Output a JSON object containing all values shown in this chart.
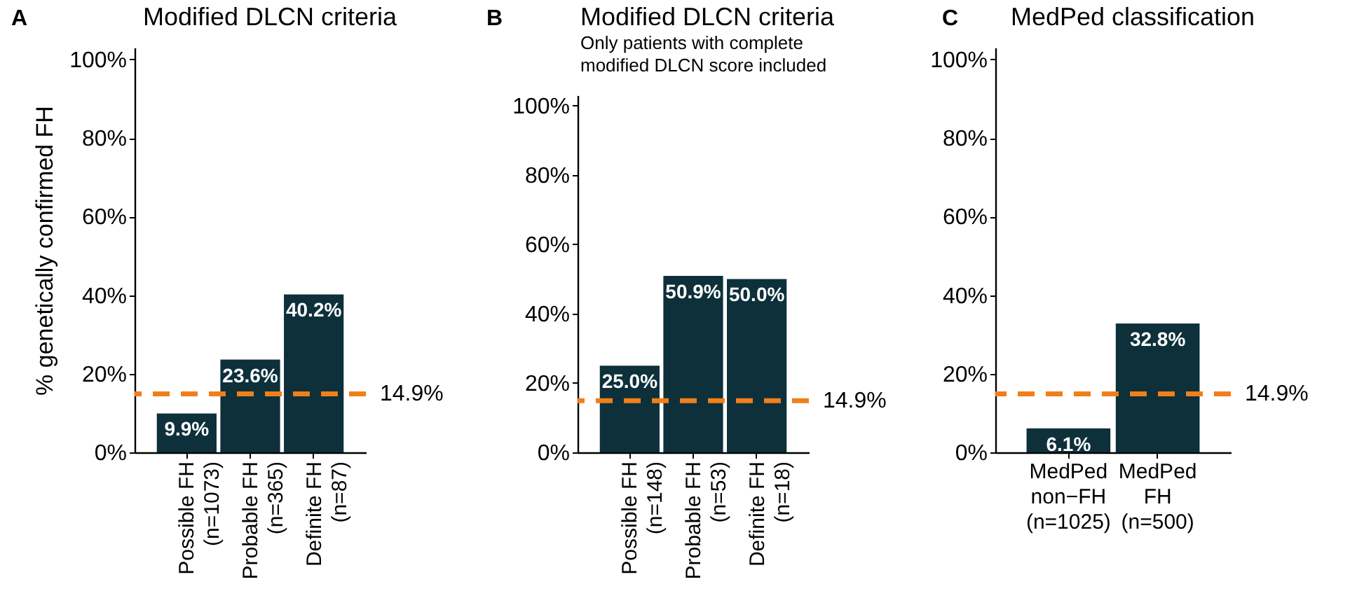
{
  "chart_data": [
    {
      "type": "bar",
      "title": "Modified DLCN criteria",
      "ylabel": "% genetically confirmed FH",
      "annotations": [
        "A"
      ],
      "categories": [
        "Possible FH\n(n=1073)",
        "Probable FH\n(n=365)",
        "Definite FH\n(n=87)"
      ],
      "series": [
        {
          "color": "#0d303b",
          "values": [
            9.9,
            23.6,
            40.2
          ],
          "value_labels": [
            "9.9%",
            "23.6%",
            "40.2%"
          ]
        }
      ],
      "ylim": [
        0,
        103
      ],
      "yticks": [
        {
          "value": 0,
          "label": "0%"
        },
        {
          "value": 20,
          "label": "20%"
        },
        {
          "value": 40,
          "label": "40%"
        },
        {
          "value": 60,
          "label": "60%"
        },
        {
          "value": 80,
          "label": "80%"
        },
        {
          "value": 100,
          "label": "100%"
        }
      ],
      "ref_lines": [
        {
          "axis": "y",
          "value": 14.9,
          "label": "14.9%",
          "color": "#f07f1a",
          "line_style": "dashed"
        }
      ],
      "grid": false
    },
    {
      "type": "bar",
      "title": "Modified DLCN criteria",
      "subtitle": "Only patients with complete\nmodified DLCN score included",
      "annotations": [
        "B"
      ],
      "categories": [
        "Possible FH\n(n=148)",
        "Probable FH\n(n=53)",
        "Definite FH\n(n=18)"
      ],
      "series": [
        {
          "color": "#0d303b",
          "values": [
            25.0,
            50.9,
            50.0
          ],
          "value_labels": [
            "25.0%",
            "50.9%",
            "50.0%"
          ]
        }
      ],
      "ylim": [
        0,
        103
      ],
      "yticks": [
        {
          "value": 0,
          "label": "0%"
        },
        {
          "value": 20,
          "label": "20%"
        },
        {
          "value": 40,
          "label": "40%"
        },
        {
          "value": 60,
          "label": "60%"
        },
        {
          "value": 80,
          "label": "80%"
        },
        {
          "value": 100,
          "label": "100%"
        }
      ],
      "ref_lines": [
        {
          "axis": "y",
          "value": 14.9,
          "label": "14.9%",
          "color": "#f07f1a",
          "line_style": "dashed"
        }
      ],
      "grid": false
    },
    {
      "type": "bar",
      "title": "MedPed classification",
      "annotations": [
        "C"
      ],
      "categories": [
        "MedPed\nnon−FH\n(n=1025)",
        "MedPed\nFH\n(n=500)"
      ],
      "series": [
        {
          "color": "#0d303b",
          "values": [
            6.1,
            32.8
          ],
          "value_labels": [
            "6.1%",
            "32.8%"
          ]
        }
      ],
      "ylim": [
        0,
        103
      ],
      "yticks": [
        {
          "value": 0,
          "label": "0%"
        },
        {
          "value": 20,
          "label": "20%"
        },
        {
          "value": 40,
          "label": "40%"
        },
        {
          "value": 60,
          "label": "60%"
        },
        {
          "value": 80,
          "label": "80%"
        },
        {
          "value": 100,
          "label": "100%"
        }
      ],
      "ref_lines": [
        {
          "axis": "y",
          "value": 14.9,
          "label": "14.9%",
          "color": "#f07f1a",
          "line_style": "dashed"
        }
      ],
      "grid": false
    }
  ]
}
